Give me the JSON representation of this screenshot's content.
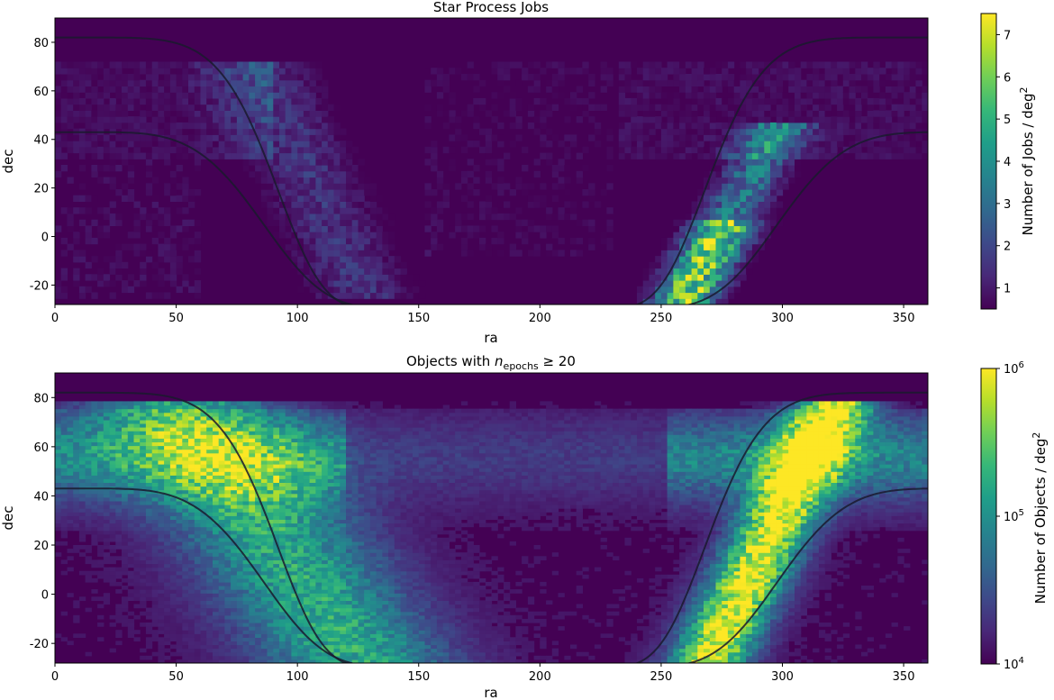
{
  "chart_data": [
    {
      "type": "heatmap",
      "title": "Star Process Jobs",
      "xlabel": "ra",
      "ylabel": "dec",
      "xlim": [
        0,
        360
      ],
      "ylim": [
        -28,
        90
      ],
      "xticks": [
        0,
        50,
        100,
        150,
        200,
        250,
        300,
        350
      ],
      "yticks": [
        -20,
        0,
        20,
        40,
        60,
        80
      ],
      "colorbar": {
        "label": "Number of Jobs / deg²",
        "scale": "linear",
        "range": [
          0.5,
          7.5
        ],
        "ticks": [
          1,
          2,
          3,
          4,
          5,
          6,
          7
        ]
      },
      "colormap": [
        "#440154",
        "#482878",
        "#3e4989",
        "#31688e",
        "#26828e",
        "#1f9e89",
        "#35b779",
        "#6ece58",
        "#b5de2b",
        "#fde725"
      ],
      "overlay_curves": [
        "galactic plane boundary (upper)",
        "galactic plane boundary (lower)"
      ],
      "density_features": [
        {
          "region": "galactic plane crossing near ra 260-290",
          "ra_center": 278,
          "dec_center": 0,
          "peak_value": 7.3
        },
        {
          "region": "anticenter band near ra 100-120",
          "ra_center": 105,
          "dec_center": 10,
          "peak_value": 2.5
        },
        {
          "region": "northern sky background",
          "ra_center": 30,
          "dec_center": 50,
          "peak_value": 1.6
        }
      ]
    },
    {
      "type": "heatmap",
      "title": "Objects with n_epochs ≥ 20",
      "xlabel": "ra",
      "ylabel": "dec",
      "xlim": [
        0,
        360
      ],
      "ylim": [
        -28,
        90
      ],
      "xticks": [
        0,
        50,
        100,
        150,
        200,
        250,
        300,
        350
      ],
      "yticks": [
        -20,
        0,
        20,
        40,
        60,
        80
      ],
      "colorbar": {
        "label": "Number of Objects / deg²",
        "scale": "log",
        "range": [
          10000,
          1000000
        ],
        "ticks": [
          10000,
          100000,
          1000000
        ]
      },
      "colormap": [
        "#440154",
        "#482878",
        "#3e4989",
        "#31688e",
        "#26828e",
        "#1f9e89",
        "#35b779",
        "#6ece58",
        "#b5de2b",
        "#fde725"
      ],
      "overlay_curves": [
        "galactic plane boundary (upper)",
        "galactic plane boundary (lower)"
      ],
      "density_features": [
        {
          "region": "galactic plane crossing near ra 270-300",
          "ra_center": 285,
          "dec_center": 10,
          "peak_value": 1000000
        },
        {
          "region": "anticenter band near ra 80-120",
          "ra_center": 100,
          "dec_center": 20,
          "peak_value": 200000
        },
        {
          "region": "high galactic latitude",
          "ra_center": 190,
          "dec_center": 40,
          "peak_value": 15000
        }
      ]
    }
  ],
  "panels": [
    {
      "title_text": "Star Process Jobs",
      "xlabel": "ra",
      "ylabel": "dec"
    },
    {
      "title_prefix": "Objects with ",
      "title_var": "n",
      "title_sub": "epochs",
      "title_suffix": " ≥ 20",
      "xlabel": "ra",
      "ylabel": "dec"
    }
  ],
  "colorbar_labels": {
    "jobs_prefix": "Number of Jobs / deg",
    "objects_prefix": "Number of Objects / deg",
    "sup": "2"
  },
  "colorbar_log_ticks": {
    "base": "10",
    "exponents": [
      "4",
      "5",
      "6"
    ]
  }
}
